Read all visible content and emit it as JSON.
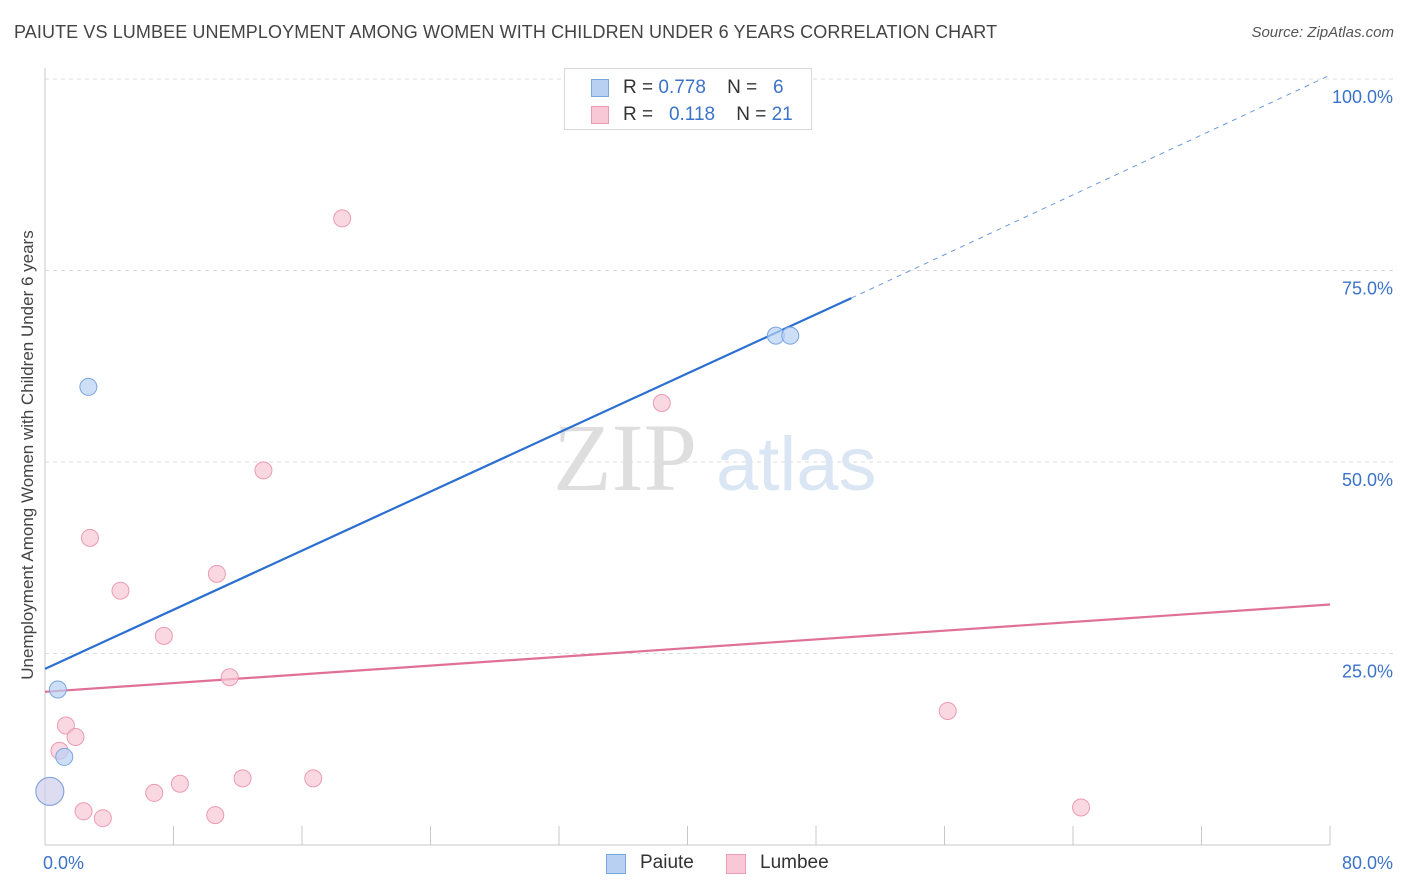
{
  "header": {
    "title": "PAIUTE VS LUMBEE UNEMPLOYMENT AMONG WOMEN WITH CHILDREN UNDER 6 YEARS CORRELATION CHART",
    "source": "Source: ZipAtlas.com"
  },
  "legend": {
    "paiute": {
      "r_label": "R =",
      "r_value": "0.778",
      "n_label": "N =",
      "n_value": "6"
    },
    "lumbee": {
      "r_label": "R =",
      "r_value": "0.118",
      "n_label": "N =",
      "n_value": "21"
    }
  },
  "watermark": {
    "zip": "ZIP",
    "atlas": "atlas"
  },
  "colors": {
    "paiute_fill": "#b8d1f3",
    "paiute_stroke": "#7aa6e0",
    "paiute_line": "#2a6fd1",
    "lumbee_fill": "#f8c8d6",
    "lumbee_stroke": "#ec9ab4",
    "lumbee_line": "#e07096",
    "tick_text": "#3b73c8",
    "grid": "#dcdcdc"
  },
  "chart_data": {
    "type": "scatter",
    "title": "PAIUTE VS LUMBEE UNEMPLOYMENT AMONG WOMEN WITH CHILDREN UNDER 6 YEARS CORRELATION CHART",
    "xlabel": "",
    "ylabel": "Unemployment Among Women with Children Under 6 years",
    "xlim": [
      0,
      80
    ],
    "ylim": [
      0,
      100
    ],
    "x_tick_labels": [
      {
        "value": 0,
        "label": "0.0%"
      },
      {
        "value": 80,
        "label": "80.0%"
      }
    ],
    "y_tick_labels": [
      {
        "value": 25,
        "label": "25.0%"
      },
      {
        "value": 50,
        "label": "50.0%"
      },
      {
        "value": 75,
        "label": "75.0%"
      },
      {
        "value": 100,
        "label": "100.0%"
      }
    ],
    "x_minor_ticks": [
      0,
      8,
      16,
      24,
      32,
      40,
      48,
      56,
      64,
      72,
      80
    ],
    "grid": true,
    "series": [
      {
        "name": "Paiute",
        "points": [
          {
            "x": 0.3,
            "y": 7.0,
            "big": true
          },
          {
            "x": 0.8,
            "y": 20.3
          },
          {
            "x": 1.2,
            "y": 11.5
          },
          {
            "x": 2.7,
            "y": 59.8
          },
          {
            "x": 45.5,
            "y": 66.5
          },
          {
            "x": 46.4,
            "y": 66.5
          }
        ],
        "trend": {
          "x0": 0,
          "y0": 23.0,
          "x1": 50.2,
          "y1": 71.4,
          "dash_to_x": 80,
          "dash_to_y": 100.5
        }
      },
      {
        "name": "Lumbee",
        "points": [
          {
            "x": 0.3,
            "y": 7.0,
            "big": true
          },
          {
            "x": 0.9,
            "y": 12.3
          },
          {
            "x": 1.3,
            "y": 15.6
          },
          {
            "x": 1.9,
            "y": 14.1
          },
          {
            "x": 2.4,
            "y": 4.4
          },
          {
            "x": 2.8,
            "y": 40.1
          },
          {
            "x": 3.6,
            "y": 3.5
          },
          {
            "x": 4.7,
            "y": 33.2
          },
          {
            "x": 6.8,
            "y": 6.8
          },
          {
            "x": 7.4,
            "y": 27.3
          },
          {
            "x": 8.4,
            "y": 8.0
          },
          {
            "x": 10.6,
            "y": 3.9
          },
          {
            "x": 10.7,
            "y": 35.4
          },
          {
            "x": 11.5,
            "y": 21.9
          },
          {
            "x": 12.3,
            "y": 8.7
          },
          {
            "x": 13.6,
            "y": 48.9
          },
          {
            "x": 16.7,
            "y": 8.7
          },
          {
            "x": 18.5,
            "y": 81.8
          },
          {
            "x": 38.4,
            "y": 57.7
          },
          {
            "x": 56.2,
            "y": 17.5
          },
          {
            "x": 64.5,
            "y": 4.9
          }
        ],
        "trend": {
          "x0": 0,
          "y0": 20.0,
          "x1": 80,
          "y1": 31.4
        }
      }
    ]
  }
}
